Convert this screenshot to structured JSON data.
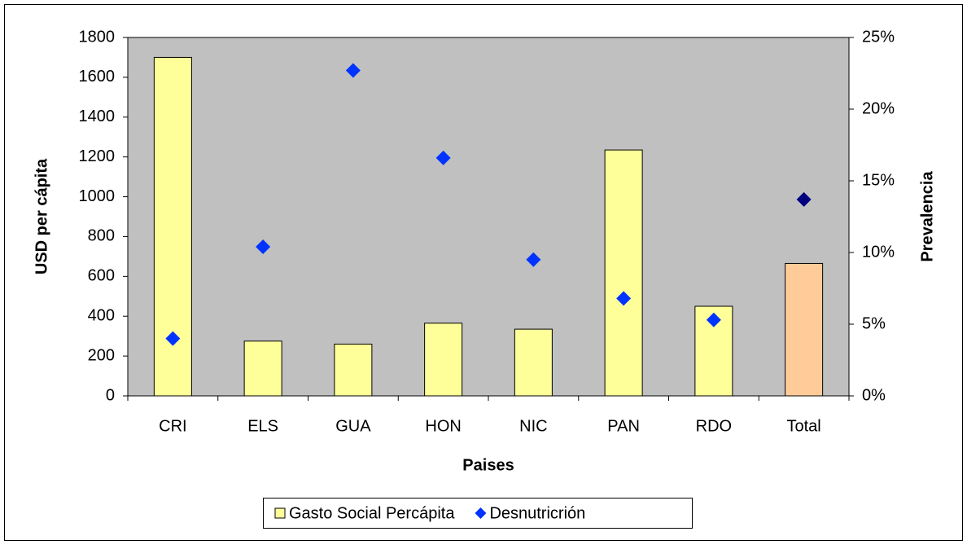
{
  "chart_data": {
    "type": "bar",
    "categories": [
      "CRI",
      "ELS",
      "GUA",
      "HON",
      "NIC",
      "PAN",
      "RDO",
      "Total"
    ],
    "series": [
      {
        "name": "Gasto Social Percápita",
        "type": "bar",
        "color": "#ffff99",
        "colors": [
          "#ffff99",
          "#ffff99",
          "#ffff99",
          "#ffff99",
          "#ffff99",
          "#ffff99",
          "#ffff99",
          "#ffcc99"
        ],
        "values": [
          1700,
          275,
          260,
          365,
          335,
          1235,
          450,
          665
        ]
      },
      {
        "name": "Desnutricrión",
        "type": "scatter",
        "axis": "y2",
        "color": "#0033ff",
        "colors": [
          "#0033ff",
          "#0033ff",
          "#0033ff",
          "#0033ff",
          "#0033ff",
          "#0033ff",
          "#0033ff",
          "#000080"
        ],
        "values": [
          4.0,
          10.4,
          22.7,
          16.6,
          9.5,
          6.8,
          5.3,
          13.7
        ]
      }
    ],
    "x_label": "Paises",
    "y_label": "USD per cápita",
    "y2_label": "Prevalencia",
    "ylim": [
      0,
      1800
    ],
    "yticks": [
      0,
      200,
      400,
      600,
      800,
      1000,
      1200,
      1400,
      1600,
      1800
    ],
    "y2lim": [
      0,
      25
    ],
    "y2ticks": [
      {
        "value": 0,
        "label": "0%"
      },
      {
        "value": 5,
        "label": "5%"
      },
      {
        "value": 10,
        "label": "10%"
      },
      {
        "value": 15,
        "label": "15%"
      },
      {
        "value": 20,
        "label": "20%"
      },
      {
        "value": 25,
        "label": "25%"
      }
    ],
    "plot_background": "#c0c0c0",
    "legend": "bottom"
  }
}
